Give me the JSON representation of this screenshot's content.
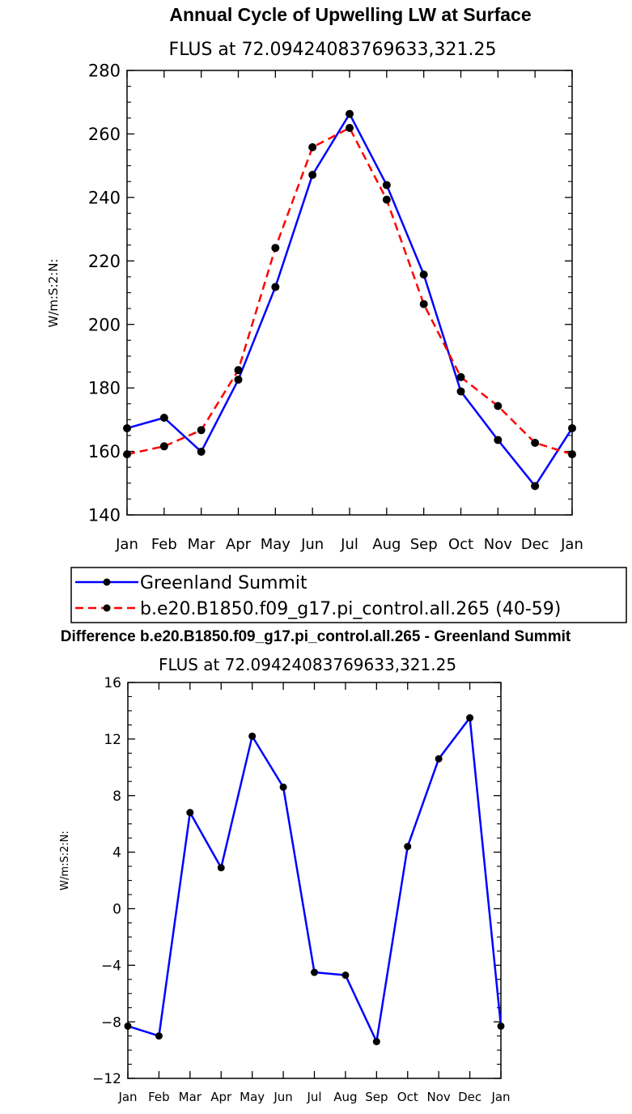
{
  "chart_data": [
    {
      "type": "line",
      "title": "Annual Cycle of Upwelling LW at Surface",
      "subtitle": "FLUS at 72.09424083769633,321.25",
      "ylabel": "W/m:S:2:N:",
      "xlabel": "",
      "ylim": [
        140,
        280
      ],
      "yticks": [
        "140",
        "160",
        "180",
        "200",
        "220",
        "240",
        "260",
        "280"
      ],
      "categories": [
        "Jan",
        "Feb",
        "Mar",
        "Apr",
        "May",
        "Jun",
        "Jul",
        "Aug",
        "Sep",
        "Oct",
        "Nov",
        "Dec",
        "Jan"
      ],
      "series": [
        {
          "name": "Greenland Summit",
          "color": "#0000ff",
          "dash": "solid",
          "values": [
            167.3,
            170.6,
            159.9,
            182.6,
            211.8,
            247.1,
            266.3,
            243.9,
            215.7,
            178.9,
            163.6,
            149.1,
            167.3
          ]
        },
        {
          "name": "b.e20.B1850.f09_g17.pi_control.all.265 (40-59)",
          "color": "#ff0000",
          "dash": "dashed",
          "values": [
            159.1,
            161.6,
            166.7,
            185.6,
            224.1,
            255.8,
            261.9,
            239.3,
            206.4,
            183.4,
            174.3,
            162.7,
            159.1
          ]
        }
      ],
      "legend": "below"
    },
    {
      "type": "line",
      "title": "Difference b.e20.B1850.f09_g17.pi_control.all.265 - Greenland Summit",
      "subtitle": "FLUS at 72.09424083769633,321.25",
      "ylabel": "W/m:S:2:N:",
      "xlabel": "",
      "ylim": [
        -12,
        16
      ],
      "yticks": [
        "−12",
        "−8",
        "−4",
        "0",
        "4",
        "8",
        "12",
        "16"
      ],
      "categories": [
        "Jan",
        "Feb",
        "Mar",
        "Apr",
        "May",
        "Jun",
        "Jul",
        "Aug",
        "Sep",
        "Oct",
        "Nov",
        "Dec",
        "Jan"
      ],
      "series": [
        {
          "name": "Difference",
          "color": "#0000ff",
          "dash": "solid",
          "values": [
            -8.3,
            -9.0,
            6.8,
            2.9,
            12.2,
            8.6,
            -4.5,
            -4.7,
            -9.4,
            4.4,
            10.6,
            13.5,
            -8.3
          ]
        }
      ]
    }
  ]
}
